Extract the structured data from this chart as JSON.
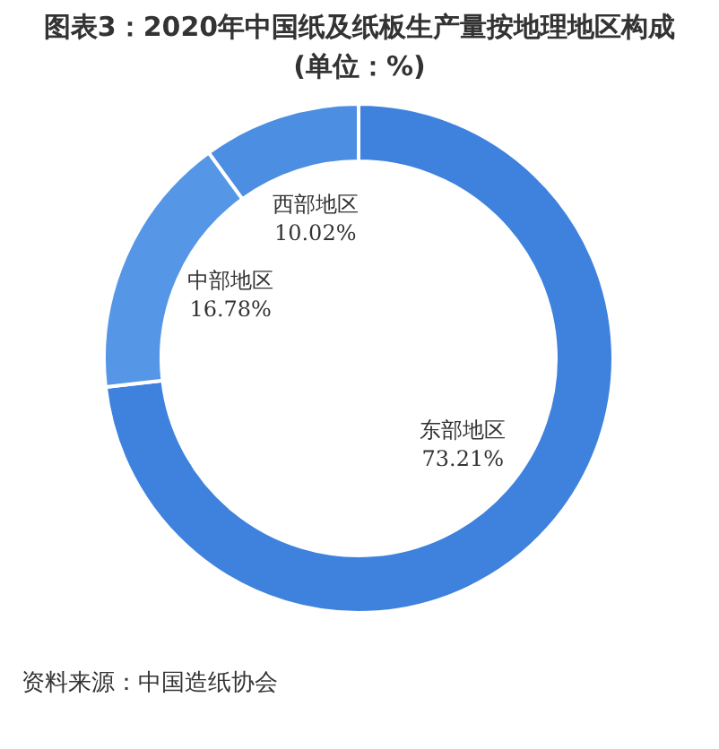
{
  "chart_data": {
    "type": "donut",
    "title": "图表3：2020年中国纸及纸板生产量按地理地区构成(单位：%)",
    "categories": [
      "东部地区",
      "中部地区",
      "西部地区"
    ],
    "values": [
      73.21,
      16.78,
      10.02
    ],
    "value_labels": [
      "73.21%",
      "16.78%",
      "10.02%"
    ],
    "colors": [
      "#3f82de",
      "#5597e6",
      "#4b8ee2"
    ],
    "annotations": [
      "资料来源：中国造纸协会"
    ]
  }
}
